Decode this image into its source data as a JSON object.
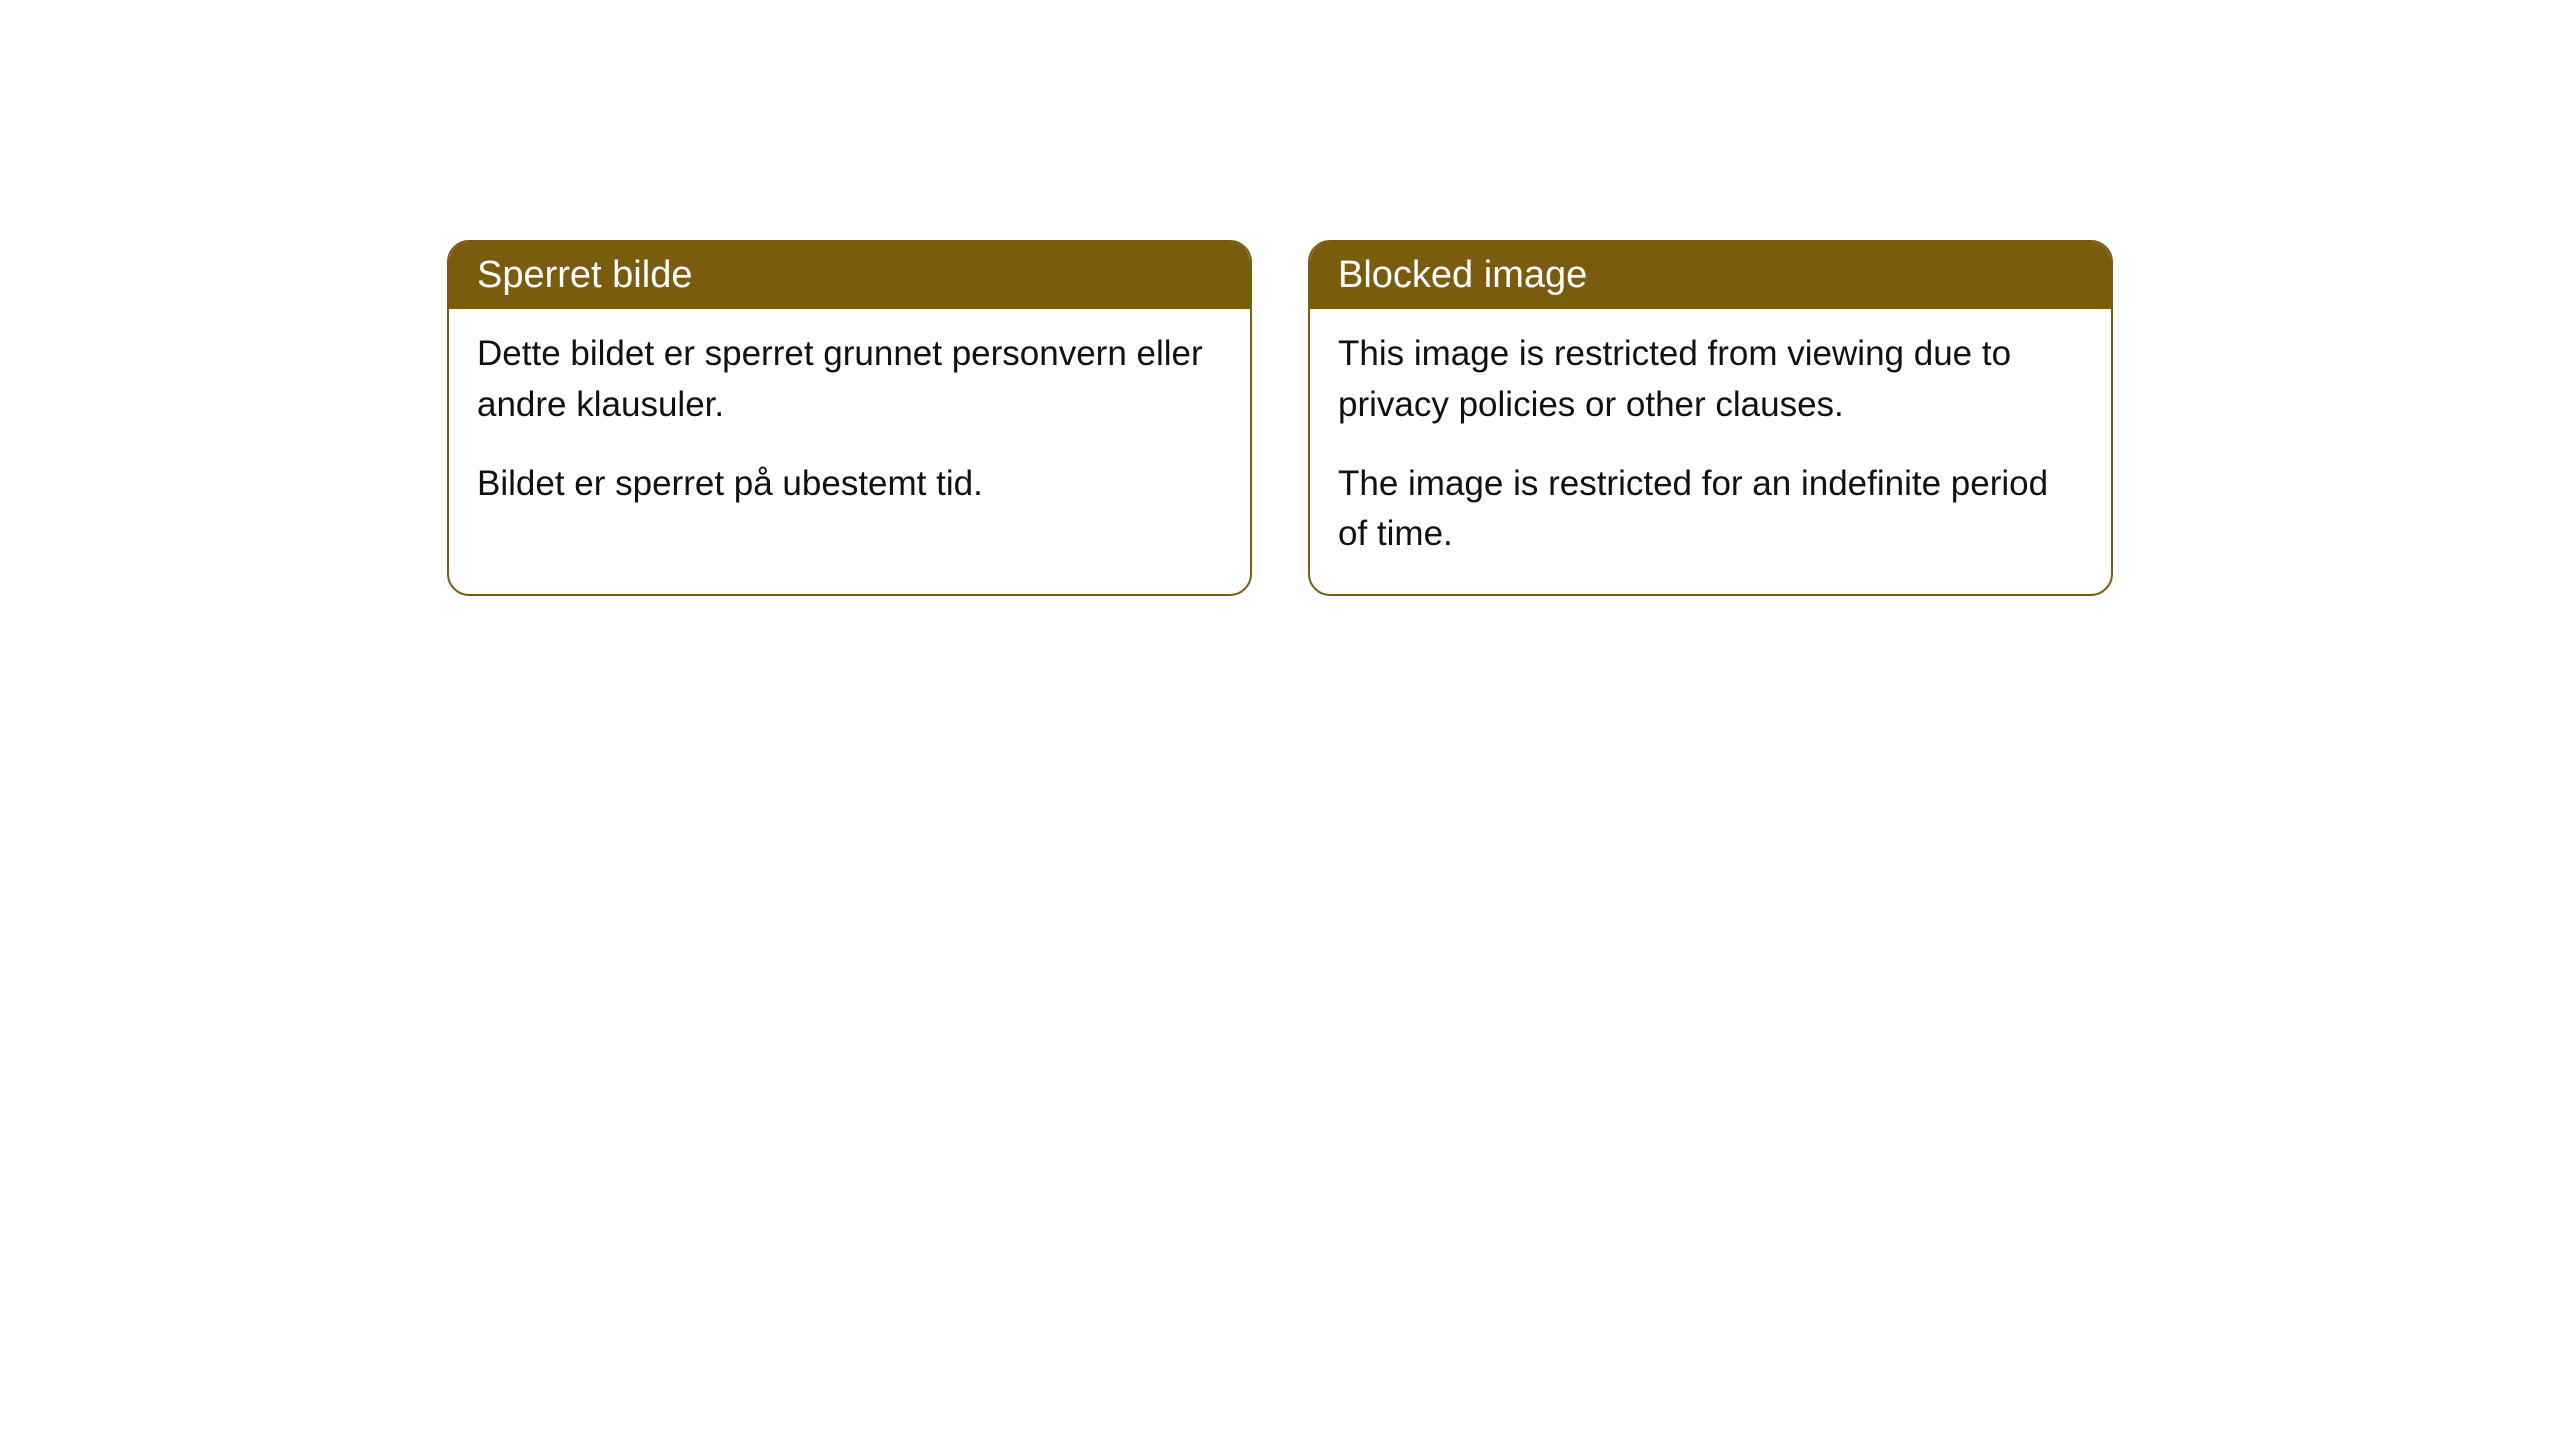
{
  "cards": [
    {
      "title": "Sperret bilde",
      "paragraph1": "Dette bildet er sperret grunnet personvern eller andre klausuler.",
      "paragraph2": "Bildet er sperret på ubestemt tid."
    },
    {
      "title": "Blocked image",
      "paragraph1": "This image is restricted from viewing due to privacy policies or other clauses.",
      "paragraph2": "The image is restricted for an indefinite period of time."
    }
  ],
  "style": {
    "header_background": "#7a5c0f",
    "header_text_color": "#ffffff",
    "border_color": "#7a5c0f",
    "body_text_color": "#111111",
    "background_color": "#ffffff",
    "border_radius": 22,
    "title_fontsize": 38,
    "body_fontsize": 35
  }
}
